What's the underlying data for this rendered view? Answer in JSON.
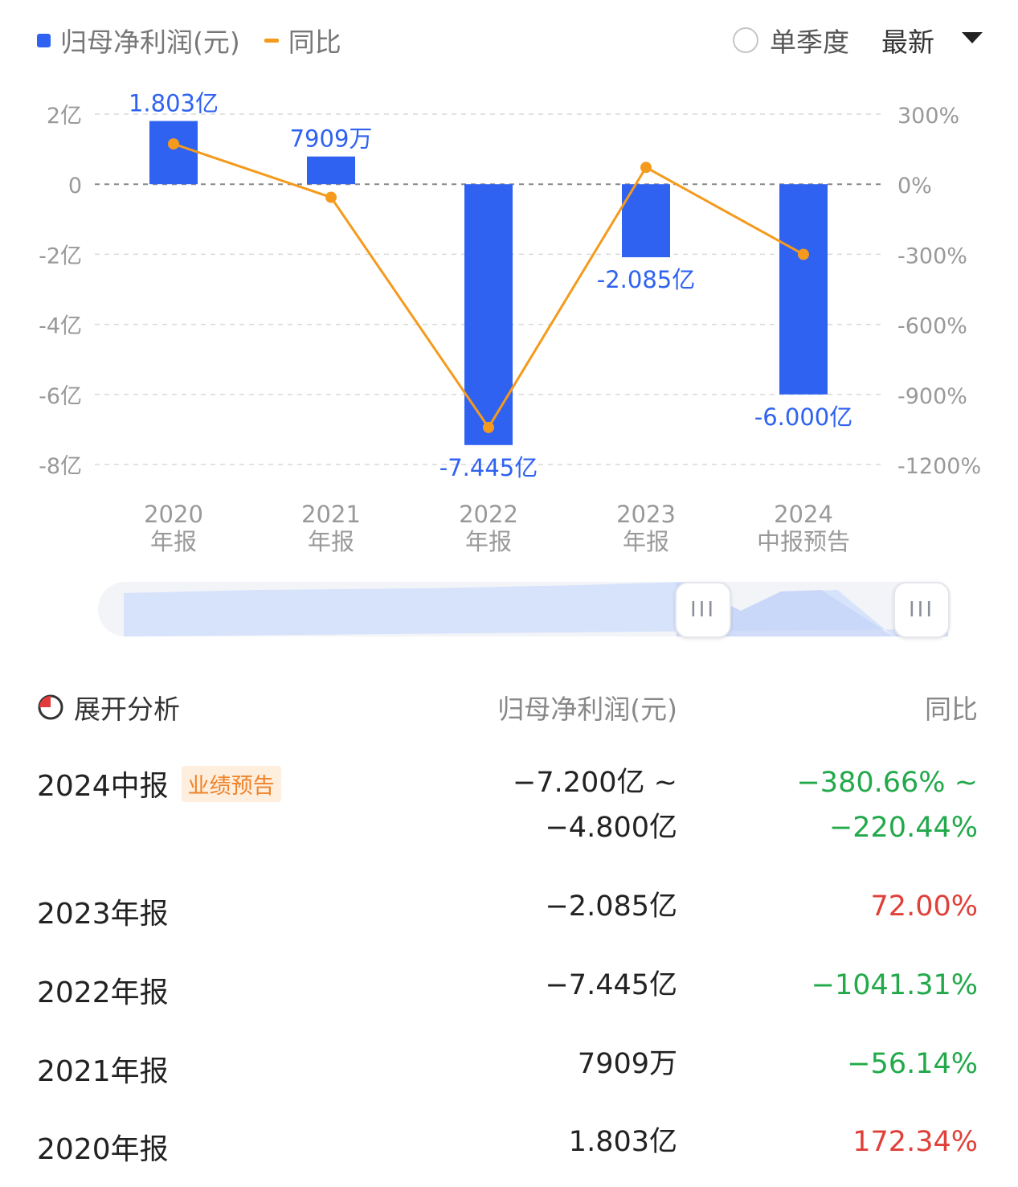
{
  "legend": {
    "bar_label": "归母净利润(元)",
    "line_label": "同比",
    "bar_color": "#2f62f0",
    "line_color": "#f59a1c"
  },
  "controls": {
    "single_quarter": "单季度",
    "latest": "最新"
  },
  "chart_data": {
    "type": "bar",
    "categories": [
      [
        "2020",
        "年报"
      ],
      [
        "2021",
        "年报"
      ],
      [
        "2022",
        "年报"
      ],
      [
        "2023",
        "年报"
      ],
      [
        "2024",
        "中报预告"
      ]
    ],
    "series": [
      {
        "name": "归母净利润(元)",
        "type": "bar",
        "axis": "left",
        "values": [
          1.803,
          0.7909,
          -7.445,
          -2.085,
          -6.0
        ],
        "labels": [
          "1.803亿",
          "7909万",
          "-7.445亿",
          "-2.085亿",
          "-6.000亿"
        ]
      },
      {
        "name": "同比",
        "type": "line",
        "axis": "right",
        "values": [
          172.34,
          -56.14,
          -1041.31,
          72.0,
          -300.55
        ]
      }
    ],
    "y_left": {
      "ylim": [
        -8,
        2
      ],
      "ticks": [
        2,
        0,
        -2,
        -4,
        -6,
        -8
      ],
      "tick_labels": [
        "2亿",
        "0",
        "-2亿",
        "-4亿",
        "-6亿",
        "-8亿"
      ]
    },
    "y_right": {
      "ylim": [
        -1200,
        300
      ],
      "ticks": [
        300,
        0,
        -300,
        -600,
        -900,
        -1200
      ],
      "tick_labels": [
        "300%",
        "0%",
        "-300%",
        "-600%",
        "-900%",
        "-1200%"
      ]
    },
    "grid": "dashed"
  },
  "table": {
    "expand_label": "展开分析",
    "col_value": "归母净利润(元)",
    "col_yoy": "同比",
    "rows": [
      {
        "period": "2024中报",
        "badge": "业绩预告",
        "value": "−7.200亿 ~",
        "value2": "−4.800亿",
        "yoy": "−380.66% ~",
        "yoy2": "−220.44%"
      },
      {
        "period": "2023年报",
        "value": "−2.085亿",
        "yoy": "72.00%"
      },
      {
        "period": "2022年报",
        "value": "−7.445亿",
        "yoy": "−1041.31%"
      },
      {
        "period": "2021年报",
        "value": "7909万",
        "yoy": "−56.14%"
      },
      {
        "period": "2020年报",
        "value": "1.803亿",
        "yoy": "172.34%"
      }
    ]
  }
}
